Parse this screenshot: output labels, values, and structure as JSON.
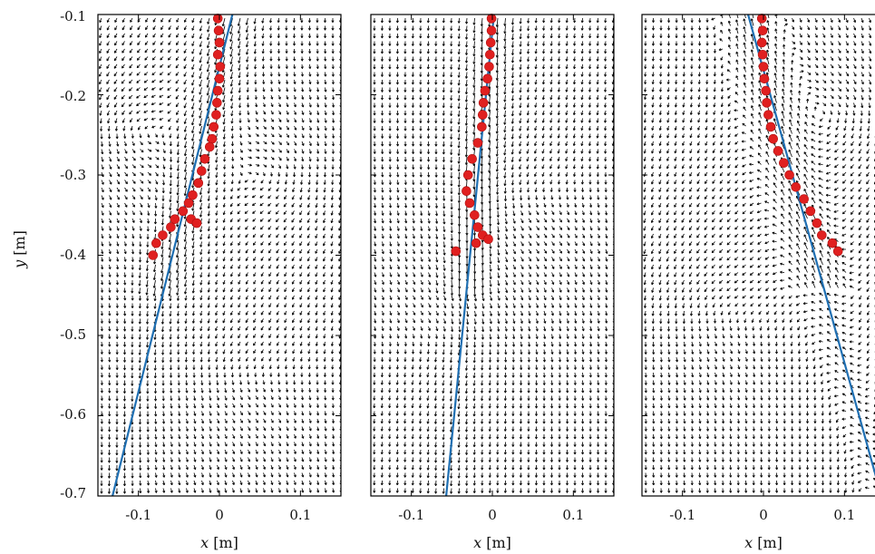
{
  "chart_data": [
    {
      "type": "quiver",
      "panel": 1,
      "xlabel_var": "x",
      "xlabel_unit": " [m]",
      "ylabel_var": "y",
      "ylabel_unit": " [m]",
      "xlim": [
        -0.15,
        0.15
      ],
      "ylim": [
        -0.7,
        -0.1
      ],
      "x_ticks": [
        -0.1,
        0,
        0.1
      ],
      "x_tick_labels": [
        "-0.1",
        "0",
        "0.1"
      ],
      "y_ticks": [
        -0.1,
        -0.2,
        -0.3,
        -0.4,
        -0.5,
        -0.6,
        -0.7
      ],
      "y_tick_labels": [
        "-0.1",
        "-0.2",
        "-0.3",
        "-0.4",
        "-0.5",
        "-0.6",
        "-0.7"
      ],
      "fit_line": {
        "color": "#1f6fb2",
        "points": [
          [
            -0.132,
            -0.7
          ],
          [
            0.016,
            -0.1
          ]
        ]
      },
      "vortices": [
        {
          "cx": -0.105,
          "cy": -0.245,
          "strength": 1.0
        },
        {
          "cx": 0.075,
          "cy": -0.3,
          "strength": -0.6
        },
        {
          "cx": 0.02,
          "cy": -0.55,
          "strength": 0.5
        }
      ],
      "particles": {
        "color": "#e02020",
        "points": [
          [
            -0.002,
            -0.105
          ],
          [
            -0.001,
            -0.12
          ],
          [
            0.0,
            -0.135
          ],
          [
            -0.002,
            -0.15
          ],
          [
            0.001,
            -0.165
          ],
          [
            0.0,
            -0.18
          ],
          [
            -0.002,
            -0.195
          ],
          [
            -0.003,
            -0.21
          ],
          [
            -0.004,
            -0.225
          ],
          [
            -0.007,
            -0.24
          ],
          [
            -0.009,
            -0.255
          ],
          [
            -0.012,
            -0.265
          ],
          [
            -0.018,
            -0.28
          ],
          [
            -0.022,
            -0.295
          ],
          [
            -0.026,
            -0.31
          ],
          [
            -0.033,
            -0.325
          ],
          [
            -0.038,
            -0.335
          ],
          [
            -0.045,
            -0.345
          ],
          [
            -0.055,
            -0.355
          ],
          [
            -0.06,
            -0.365
          ],
          [
            -0.07,
            -0.375
          ],
          [
            -0.078,
            -0.385
          ],
          [
            -0.082,
            -0.4
          ],
          [
            -0.035,
            -0.355
          ],
          [
            -0.028,
            -0.36
          ]
        ]
      }
    },
    {
      "type": "quiver",
      "panel": 2,
      "xlabel_var": "x",
      "xlabel_unit": " [m]",
      "xlim": [
        -0.15,
        0.15
      ],
      "ylim": [
        -0.7,
        -0.1
      ],
      "x_ticks": [
        -0.1,
        0,
        0.1
      ],
      "x_tick_labels": [
        "-0.1",
        "0",
        "0.1"
      ],
      "fit_line": {
        "color": "#1f6fb2",
        "points": [
          [
            -0.057,
            -0.7
          ],
          [
            0.002,
            -0.1
          ]
        ]
      },
      "vortices": [
        {
          "cx": 0.04,
          "cy": -0.33,
          "strength": 0.6
        },
        {
          "cx": -0.05,
          "cy": -0.5,
          "strength": -0.5
        }
      ],
      "particles": {
        "color": "#e02020",
        "points": [
          [
            -0.001,
            -0.105
          ],
          [
            -0.001,
            -0.12
          ],
          [
            -0.002,
            -0.135
          ],
          [
            -0.003,
            -0.15
          ],
          [
            -0.004,
            -0.165
          ],
          [
            -0.006,
            -0.18
          ],
          [
            -0.009,
            -0.195
          ],
          [
            -0.011,
            -0.21
          ],
          [
            -0.012,
            -0.225
          ],
          [
            -0.013,
            -0.24
          ],
          [
            -0.018,
            -0.26
          ],
          [
            -0.025,
            -0.28
          ],
          [
            -0.03,
            -0.3
          ],
          [
            -0.032,
            -0.32
          ],
          [
            -0.028,
            -0.335
          ],
          [
            -0.022,
            -0.35
          ],
          [
            -0.018,
            -0.365
          ],
          [
            -0.012,
            -0.375
          ],
          [
            -0.02,
            -0.385
          ],
          [
            -0.045,
            -0.395
          ],
          [
            -0.005,
            -0.38
          ]
        ]
      }
    },
    {
      "type": "quiver",
      "panel": 3,
      "xlabel_var": "x",
      "xlabel_unit": " [m]",
      "xlim": [
        -0.15,
        0.15
      ],
      "ylim": [
        -0.7,
        -0.1
      ],
      "x_ticks": [
        -0.1,
        0,
        0.1
      ],
      "x_tick_labels": [
        "-0.1",
        "0",
        "0.1"
      ],
      "fit_line": {
        "color": "#1f6fb2",
        "points": [
          [
            -0.019,
            -0.1
          ],
          [
            0.14,
            -0.68
          ]
        ]
      },
      "vortices": [
        {
          "cx": 0.095,
          "cy": -0.23,
          "strength": -0.9
        },
        {
          "cx": -0.06,
          "cy": -0.47,
          "strength": 0.6
        }
      ],
      "particles": {
        "color": "#e02020",
        "points": [
          [
            -0.002,
            -0.105
          ],
          [
            -0.001,
            -0.12
          ],
          [
            -0.002,
            -0.135
          ],
          [
            -0.001,
            -0.15
          ],
          [
            0.0,
            -0.165
          ],
          [
            0.001,
            -0.18
          ],
          [
            0.003,
            -0.195
          ],
          [
            0.004,
            -0.21
          ],
          [
            0.006,
            -0.225
          ],
          [
            0.009,
            -0.24
          ],
          [
            0.012,
            -0.255
          ],
          [
            0.018,
            -0.27
          ],
          [
            0.025,
            -0.285
          ],
          [
            0.032,
            -0.3
          ],
          [
            0.04,
            -0.315
          ],
          [
            0.05,
            -0.33
          ],
          [
            0.058,
            -0.345
          ],
          [
            0.066,
            -0.36
          ],
          [
            0.072,
            -0.375
          ],
          [
            0.085,
            -0.385
          ],
          [
            0.092,
            -0.395
          ]
        ]
      }
    }
  ]
}
